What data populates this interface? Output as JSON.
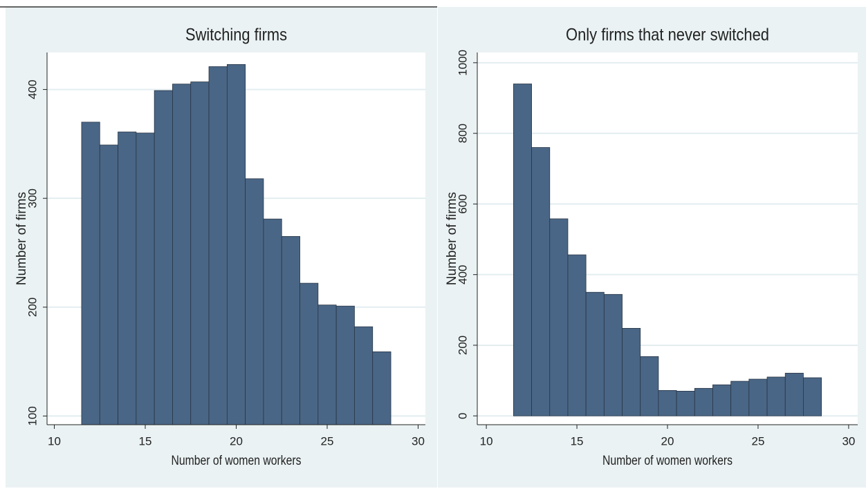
{
  "chart_data": [
    {
      "type": "histogram",
      "title": "Switching firms",
      "xlabel": "Number of women workers",
      "ylabel": "Number of firms",
      "bins": [
        11.5,
        12.5,
        13.5,
        14.5,
        15.5,
        16.5,
        17.5,
        18.5,
        19.5,
        20.5,
        21.5,
        22.5,
        23.5,
        24.5,
        25.5,
        26.5,
        27.5,
        28.5
      ],
      "values": [
        370,
        349,
        361,
        360,
        399,
        405,
        407,
        421,
        423,
        318,
        281,
        265,
        222,
        202,
        201,
        182,
        159
      ],
      "xlim": [
        9.6,
        30.4
      ],
      "ylim": [
        92,
        434
      ],
      "xticks": [
        10,
        15,
        20,
        25,
        30
      ],
      "yticks": [
        100,
        200,
        300,
        400
      ],
      "color": "#4a6686",
      "grid": true
    },
    {
      "type": "histogram",
      "title": "Only firms that never switched",
      "xlabel": "Number of women workers",
      "ylabel": "Number of firms",
      "bins": [
        11.5,
        12.5,
        13.5,
        14.5,
        15.5,
        16.5,
        17.5,
        18.5,
        19.5,
        20.5,
        21.5,
        22.5,
        23.5,
        24.5,
        25.5,
        26.5,
        27.5,
        28.5
      ],
      "values": [
        940,
        760,
        558,
        456,
        350,
        344,
        248,
        168,
        72,
        70,
        78,
        88,
        98,
        104,
        110,
        121,
        108
      ],
      "xlim": [
        9.5,
        30.5
      ],
      "ylim": [
        -25,
        1029
      ],
      "xticks": [
        10,
        15,
        20,
        25,
        30
      ],
      "yticks": [
        0,
        200,
        400,
        600,
        800,
        1000
      ],
      "color": "#4a6686",
      "grid": true
    }
  ]
}
